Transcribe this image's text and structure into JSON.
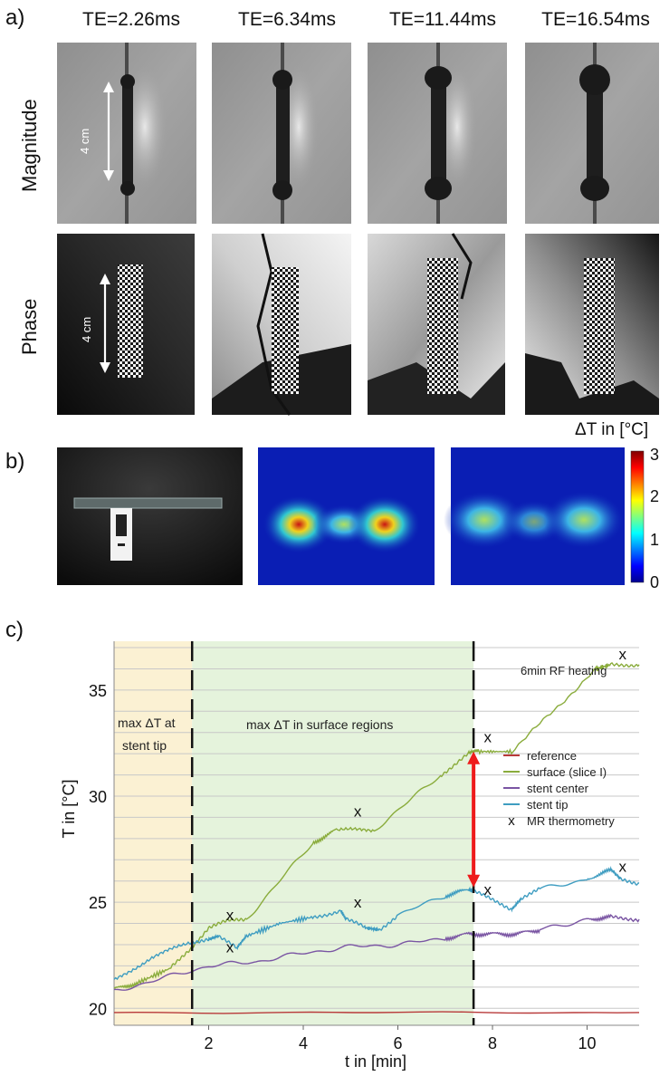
{
  "panel_a": {
    "label": "a)",
    "te_labels": [
      "TE=2.26ms",
      "TE=6.34ms",
      "TE=11.44ms",
      "TE=16.54ms"
    ],
    "row_labels": [
      "Magnitude",
      "Phase"
    ],
    "scale_label": "4 cm"
  },
  "panel_b": {
    "label": "b)",
    "colorbar_title": "ΔT in [°C]",
    "colorbar_ticks": [
      "3",
      "2",
      "1",
      "0"
    ]
  },
  "panel_c": {
    "label": "c)",
    "region1_line1": "max ΔT at",
    "region1_line2": "stent tip",
    "region2": "max ΔT in surface regions",
    "rf_label": "6min RF heating"
  },
  "chart_data": {
    "type": "line",
    "xlabel": "t in [min]",
    "ylabel": "T in [°C]",
    "xlim": [
      0,
      11.1
    ],
    "ylim": [
      19.2,
      37.3
    ],
    "xticks": [
      2,
      4,
      6,
      8,
      10
    ],
    "yticks": [
      20,
      25,
      30,
      35
    ],
    "grid": true,
    "legend_position": "right",
    "colors": {
      "reference": "#b83a3a",
      "surface": "#8aac3c",
      "stent_center": "#7a55a3",
      "stent_tip": "#3f9dc1",
      "marker": "#111111",
      "arrow": "#ee1c1c",
      "region_tip": "#fbf1d3",
      "region_surface": "#e5f3dc"
    },
    "series": [
      {
        "name": "reference",
        "x": [
          0,
          11.1
        ],
        "y": [
          19.8,
          19.8
        ]
      },
      {
        "name": "surface (slice I)",
        "x": [
          0,
          0.5,
          1.2,
          1.6,
          2.0,
          2.4,
          2.8,
          4.2,
          4.7,
          5.5,
          6.9,
          7.5,
          7.7,
          8.4,
          10.2,
          10.5,
          11.1
        ],
        "y": [
          20.9,
          21.2,
          21.9,
          22.8,
          23.8,
          24.1,
          24.2,
          27.8,
          28.4,
          28.4,
          31.0,
          32.0,
          32.1,
          32.1,
          36.0,
          36.2,
          36.2
        ]
      },
      {
        "name": "stent center",
        "x": [
          0,
          1.0,
          2.0,
          3.0,
          4.0,
          5.0,
          6.0,
          7.0,
          7.5,
          8.0,
          8.5,
          9.0,
          10.0,
          10.5,
          11.1
        ],
        "y": [
          20.8,
          21.4,
          22.0,
          22.2,
          22.6,
          22.9,
          23.0,
          23.3,
          23.5,
          23.5,
          23.5,
          23.7,
          24.2,
          24.3,
          24.2
        ]
      },
      {
        "name": "stent tip",
        "x": [
          0,
          0.8,
          1.6,
          2.0,
          2.2,
          2.6,
          2.8,
          3.5,
          4.2,
          4.8,
          4.9,
          5.3,
          5.6,
          6.0,
          7.0,
          7.5,
          7.6,
          8.0,
          8.4,
          8.6,
          9.0,
          10.0,
          10.5,
          10.7,
          11.1
        ],
        "y": [
          21.3,
          22.4,
          23.1,
          23.3,
          23.4,
          22.8,
          23.4,
          24.0,
          24.3,
          24.6,
          24.2,
          23.8,
          23.7,
          24.4,
          25.3,
          25.6,
          25.5,
          25.1,
          24.7,
          25.2,
          25.6,
          26.1,
          26.5,
          26.1,
          25.9
        ]
      }
    ],
    "mr_thermometry": {
      "name": "MR thermometry",
      "marker": "x",
      "points": [
        [
          2.45,
          24.4
        ],
        [
          2.45,
          22.9
        ],
        [
          5.15,
          29.3
        ],
        [
          5.15,
          25.0
        ],
        [
          7.9,
          32.8
        ],
        [
          7.9,
          25.6
        ],
        [
          10.75,
          36.7
        ],
        [
          10.75,
          26.7
        ]
      ]
    },
    "vlines": [
      1.65,
      7.6
    ],
    "arrow": {
      "x": 7.6,
      "y_from": 32.1,
      "y_to": 25.7
    },
    "legend": [
      "reference",
      "surface (slice I)",
      "stent center",
      "stent tip",
      "MR thermometry"
    ]
  }
}
